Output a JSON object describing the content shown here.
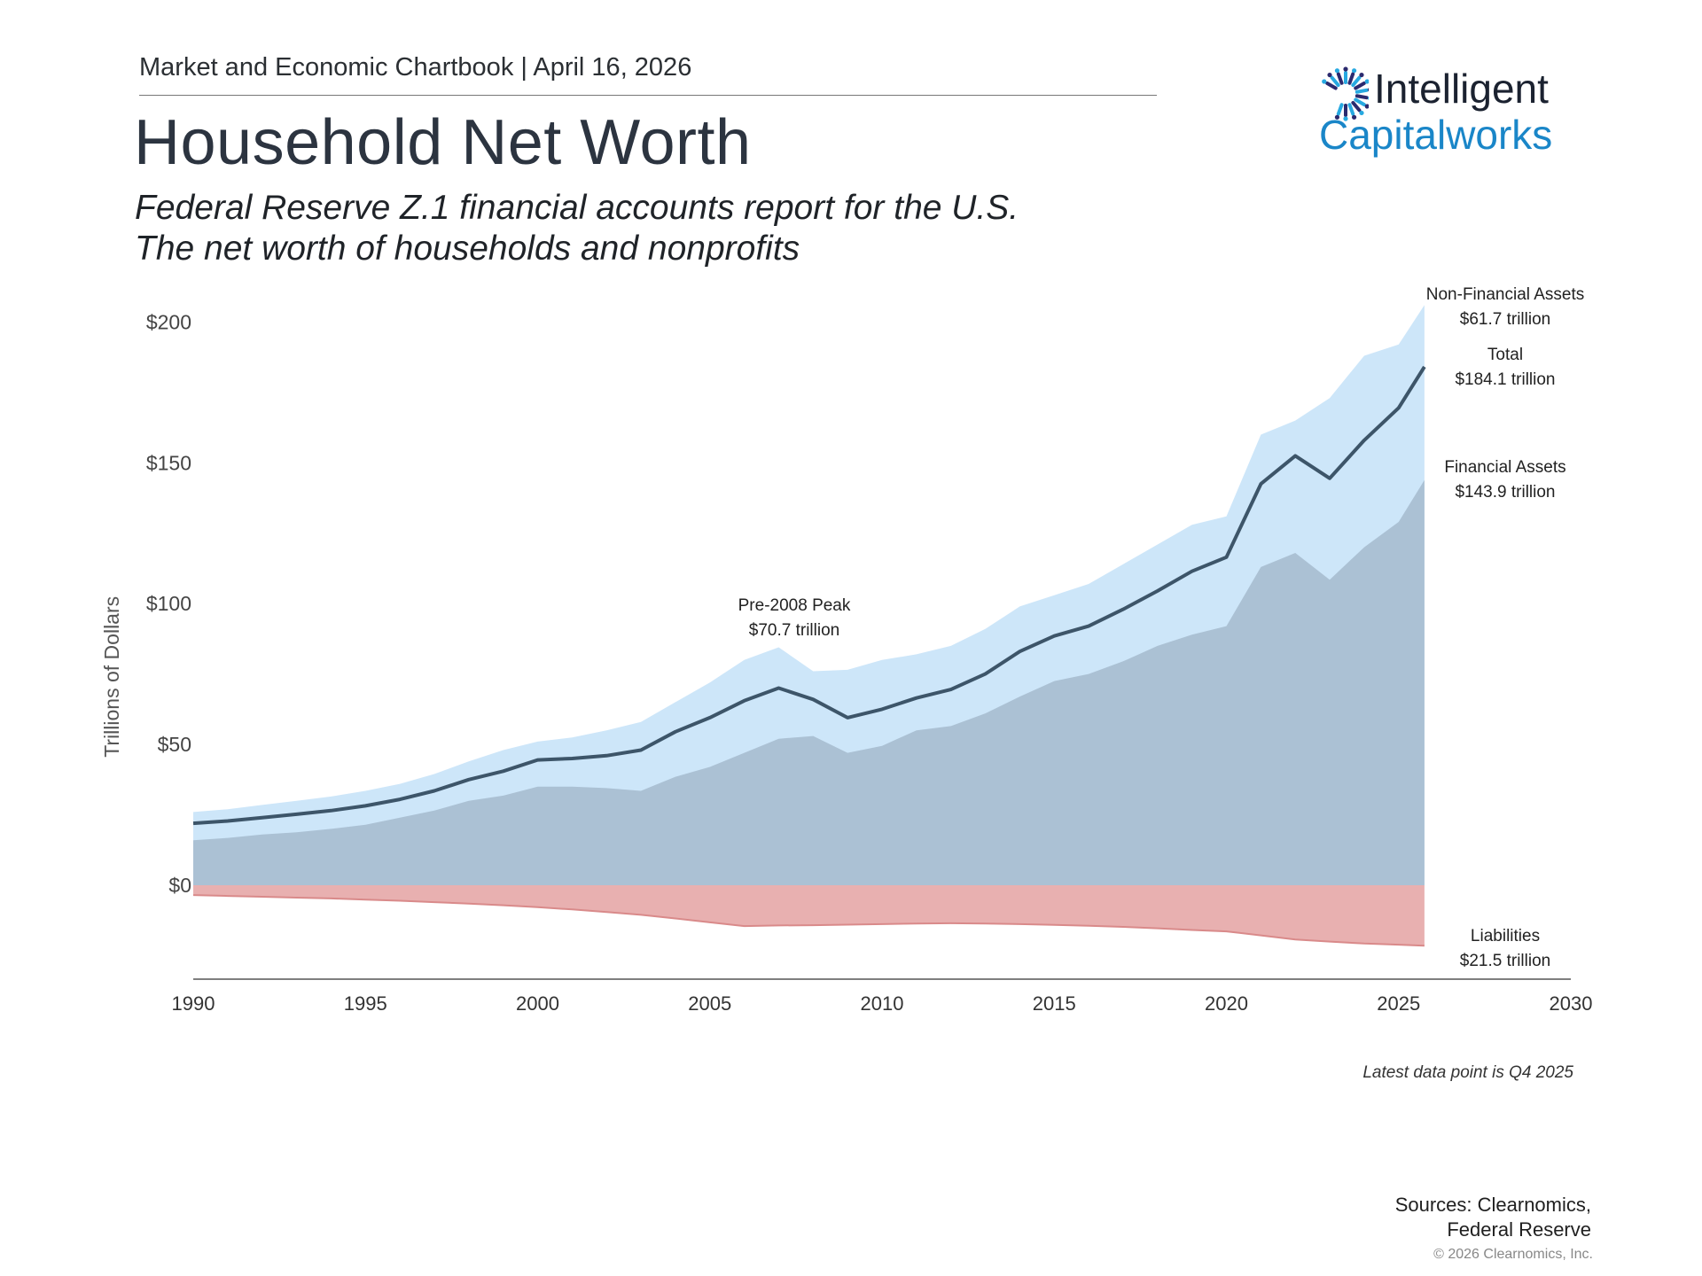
{
  "header": {
    "subheading": "Market and Economic Chartbook | April 16, 2026",
    "title": "Household Net Worth",
    "subtitle_line1": "Federal Reserve Z.1 financial accounts report for the U.S.",
    "subtitle_line2": "The net worth of households and nonprofits"
  },
  "logo": {
    "word1": "Intelligent",
    "word2": "Capitalworks",
    "mark_icon": "sunburst-c-icon",
    "colors": {
      "word1": "#1b2230",
      "word2": "#1a86c8",
      "mark_dark": "#2b2a6e",
      "mark_light": "#27a9e1"
    }
  },
  "chart_data": {
    "type": "area",
    "ylabel": "Trillions of Dollars",
    "xlabel": "",
    "xlim": [
      1990,
      2030
    ],
    "ylim": [
      -33,
      200
    ],
    "y_ticks": [
      {
        "value": 200,
        "label": "$200"
      },
      {
        "value": 150,
        "label": "$150"
      },
      {
        "value": 100,
        "label": "$100"
      },
      {
        "value": 50,
        "label": "$50"
      },
      {
        "value": 0,
        "label": "$0"
      }
    ],
    "x_ticks": [
      {
        "value": 1990,
        "label": "1990"
      },
      {
        "value": 1995,
        "label": "1995"
      },
      {
        "value": 2000,
        "label": "2000"
      },
      {
        "value": 2005,
        "label": "2005"
      },
      {
        "value": 2010,
        "label": "2010"
      },
      {
        "value": 2015,
        "label": "2015"
      },
      {
        "value": 2020,
        "label": "2020"
      },
      {
        "value": 2025,
        "label": "2025"
      },
      {
        "value": 2030,
        "label": "2030"
      }
    ],
    "grid": false,
    "colors": {
      "non_financial": "#cde6f9",
      "financial": "#abc1d4",
      "total_line": "#3d5569",
      "liabilities": "#e8b0b0",
      "liabilities_edge": "#d98a8a",
      "axis": "#555555"
    },
    "x": [
      1990,
      1991,
      1992,
      1993,
      1994,
      1995,
      1996,
      1997,
      1998,
      1999,
      2000,
      2001,
      2002,
      2003,
      2004,
      2005,
      2006,
      2007,
      2008,
      2009,
      2010,
      2011,
      2012,
      2013,
      2014,
      2015,
      2016,
      2017,
      2018,
      2019,
      2020,
      2021,
      2022,
      2023,
      2024,
      2025,
      2025.75
    ],
    "series": [
      {
        "name": "Non-Financial Assets",
        "role": "upper_bound_total_assets",
        "values": [
          26,
          27,
          28.5,
          30,
          31.5,
          33.5,
          36,
          39.5,
          44,
          48,
          51,
          52.5,
          55,
          58,
          65,
          72,
          80,
          84.5,
          76,
          76.5,
          80,
          82,
          85,
          91,
          99,
          103,
          107,
          114,
          121,
          128,
          131,
          160,
          165,
          173,
          188,
          192,
          206
        ]
      },
      {
        "name": "Total",
        "role": "line",
        "values": [
          22,
          22.8,
          24,
          25.2,
          26.5,
          28.2,
          30.5,
          33.5,
          37.5,
          40.5,
          44.5,
          45,
          46,
          48,
          54.5,
          59.5,
          65.5,
          70,
          66,
          59.5,
          62.5,
          66.5,
          69.5,
          75,
          83,
          88.5,
          92,
          98,
          104.5,
          111.5,
          116.5,
          142.5,
          152.5,
          144.5,
          158,
          169.5,
          184.1
        ]
      },
      {
        "name": "Financial Assets",
        "role": "lower_band",
        "values": [
          16,
          16.8,
          18,
          18.8,
          20,
          21.5,
          24,
          26.5,
          30,
          31.8,
          35,
          35,
          34.5,
          33.5,
          38.5,
          42,
          47,
          52,
          53,
          47,
          49.5,
          55,
          56.5,
          61,
          67,
          72.5,
          75,
          79.5,
          85,
          89,
          92,
          113,
          118,
          108.5,
          120,
          129,
          143.9
        ]
      },
      {
        "name": "Liabilities",
        "role": "negative_band",
        "values": [
          -3.5,
          -3.8,
          -4.1,
          -4.4,
          -4.7,
          -5.1,
          -5.5,
          -6,
          -6.5,
          -7.1,
          -7.8,
          -8.6,
          -9.5,
          -10.5,
          -11.8,
          -13.2,
          -14.5,
          -14.3,
          -14.2,
          -14,
          -13.8,
          -13.6,
          -13.5,
          -13.6,
          -13.8,
          -14.1,
          -14.4,
          -14.8,
          -15.3,
          -15.9,
          -16.4,
          -17.8,
          -19.3,
          -20,
          -20.7,
          -21.1,
          -21.5
        ]
      }
    ],
    "annotations": [
      {
        "label": "Non-Financial Assets",
        "value_text": "$61.7 trillion"
      },
      {
        "label": "Total",
        "value_text": "$184.1 trillion"
      },
      {
        "label": "Financial Assets",
        "value_text": "$143.9 trillion"
      },
      {
        "label": "Liabilities",
        "value_text": "$21.5 trillion"
      },
      {
        "label": "Pre-2008 Peak",
        "value_text": "$70.7 trillion",
        "x": 2007.5
      }
    ]
  },
  "footer": {
    "footnote": "Latest data point is Q4 2025",
    "sources_line1": "Sources: Clearnomics,",
    "sources_line2": "Federal Reserve",
    "copyright": "© 2026 Clearnomics, Inc."
  }
}
